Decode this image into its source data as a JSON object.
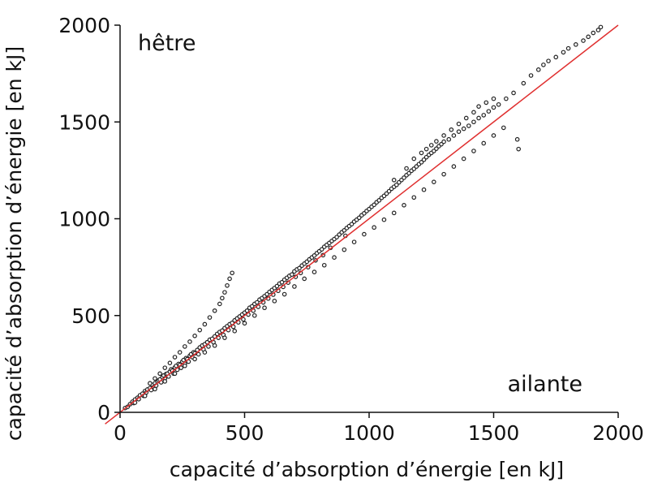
{
  "chart_data": {
    "type": "scatter",
    "xlabel": "capacité d’absorption d’énergie [en kJ]",
    "ylabel": "capacité d’absorption d’énergie [en kJ]",
    "xlim": [
      0,
      2000
    ],
    "ylim": [
      0,
      2000
    ],
    "xticks": [
      "0",
      "500",
      "1000",
      "1500",
      "2000"
    ],
    "yticks": [
      "0",
      "500",
      "1000",
      "1500",
      "2000"
    ],
    "annotations": {
      "top_left": "hêtre",
      "bottom_right": "ailante"
    },
    "grid": false,
    "marker_color": "#222222",
    "reference_line": {
      "type": "identity",
      "color": "#e03030",
      "from": [
        -60,
        -60
      ],
      "to": [
        2000,
        2000
      ]
    },
    "points": [
      [
        20,
        22
      ],
      [
        30,
        28
      ],
      [
        40,
        42
      ],
      [
        50,
        55
      ],
      [
        55,
        48
      ],
      [
        60,
        66
      ],
      [
        70,
        75
      ],
      [
        75,
        68
      ],
      [
        80,
        88
      ],
      [
        90,
        96
      ],
      [
        95,
        85
      ],
      [
        100,
        110
      ],
      [
        105,
        102
      ],
      [
        110,
        118
      ],
      [
        120,
        125
      ],
      [
        125,
        115
      ],
      [
        130,
        142
      ],
      [
        135,
        130
      ],
      [
        140,
        150
      ],
      [
        145,
        138
      ],
      [
        150,
        160
      ],
      [
        155,
        165
      ],
      [
        160,
        170
      ],
      [
        165,
        155
      ],
      [
        170,
        182
      ],
      [
        175,
        190
      ],
      [
        180,
        175
      ],
      [
        185,
        198
      ],
      [
        190,
        200
      ],
      [
        195,
        185
      ],
      [
        200,
        210
      ],
      [
        205,
        222
      ],
      [
        210,
        215
      ],
      [
        215,
        200
      ],
      [
        220,
        232
      ],
      [
        225,
        240
      ],
      [
        230,
        220
      ],
      [
        235,
        250
      ],
      [
        240,
        245
      ],
      [
        245,
        230
      ],
      [
        250,
        262
      ],
      [
        255,
        270
      ],
      [
        260,
        250
      ],
      [
        265,
        280
      ],
      [
        270,
        275
      ],
      [
        275,
        262
      ],
      [
        280,
        292
      ],
      [
        285,
        300
      ],
      [
        290,
        285
      ],
      [
        295,
        310
      ],
      [
        300,
        305
      ],
      [
        310,
        322
      ],
      [
        315,
        300
      ],
      [
        320,
        335
      ],
      [
        330,
        345
      ],
      [
        335,
        325
      ],
      [
        340,
        352
      ],
      [
        350,
        362
      ],
      [
        355,
        340
      ],
      [
        360,
        375
      ],
      [
        370,
        380
      ],
      [
        375,
        362
      ],
      [
        380,
        392
      ],
      [
        390,
        405
      ],
      [
        395,
        385
      ],
      [
        400,
        415
      ],
      [
        410,
        422
      ],
      [
        415,
        400
      ],
      [
        420,
        435
      ],
      [
        430,
        445
      ],
      [
        435,
        425
      ],
      [
        440,
        455
      ],
      [
        450,
        462
      ],
      [
        455,
        442
      ],
      [
        460,
        475
      ],
      [
        470,
        485
      ],
      [
        475,
        465
      ],
      [
        480,
        495
      ],
      [
        490,
        505
      ],
      [
        495,
        480
      ],
      [
        500,
        515
      ],
      [
        510,
        525
      ],
      [
        515,
        505
      ],
      [
        520,
        540
      ],
      [
        530,
        548
      ],
      [
        535,
        525
      ],
      [
        540,
        560
      ],
      [
        550,
        568
      ],
      [
        555,
        545
      ],
      [
        560,
        582
      ],
      [
        570,
        590
      ],
      [
        575,
        568
      ],
      [
        580,
        600
      ],
      [
        590,
        610
      ],
      [
        595,
        588
      ],
      [
        600,
        622
      ],
      [
        610,
        632
      ],
      [
        615,
        608
      ],
      [
        620,
        642
      ],
      [
        630,
        652
      ],
      [
        635,
        628
      ],
      [
        640,
        665
      ],
      [
        650,
        672
      ],
      [
        655,
        648
      ],
      [
        660,
        685
      ],
      [
        670,
        695
      ],
      [
        675,
        670
      ],
      [
        680,
        705
      ],
      [
        690,
        712
      ],
      [
        700,
        728
      ],
      [
        705,
        700
      ],
      [
        710,
        738
      ],
      [
        720,
        745
      ],
      [
        725,
        720
      ],
      [
        730,
        758
      ],
      [
        740,
        768
      ],
      [
        750,
        778
      ],
      [
        755,
        750
      ],
      [
        760,
        790
      ],
      [
        770,
        800
      ],
      [
        780,
        810
      ],
      [
        785,
        785
      ],
      [
        790,
        822
      ],
      [
        800,
        832
      ],
      [
        810,
        842
      ],
      [
        815,
        812
      ],
      [
        820,
        855
      ],
      [
        830,
        865
      ],
      [
        840,
        875
      ],
      [
        845,
        850
      ],
      [
        850,
        885
      ],
      [
        860,
        895
      ],
      [
        870,
        905
      ],
      [
        880,
        918
      ],
      [
        890,
        930
      ],
      [
        900,
        940
      ],
      [
        905,
        912
      ],
      [
        910,
        952
      ],
      [
        920,
        962
      ],
      [
        930,
        972
      ],
      [
        940,
        985
      ],
      [
        950,
        995
      ],
      [
        960,
        1005
      ],
      [
        970,
        1018
      ],
      [
        980,
        1028
      ],
      [
        990,
        1040
      ],
      [
        1000,
        1050
      ],
      [
        1010,
        1062
      ],
      [
        1020,
        1072
      ],
      [
        1030,
        1085
      ],
      [
        1040,
        1095
      ],
      [
        1050,
        1108
      ],
      [
        1060,
        1118
      ],
      [
        1070,
        1130
      ],
      [
        1080,
        1142
      ],
      [
        1090,
        1155
      ],
      [
        1100,
        1165
      ],
      [
        1110,
        1175
      ],
      [
        1120,
        1188
      ],
      [
        1130,
        1200
      ],
      [
        1140,
        1212
      ],
      [
        1150,
        1225
      ],
      [
        1160,
        1235
      ],
      [
        1170,
        1248
      ],
      [
        1180,
        1258
      ],
      [
        1190,
        1270
      ],
      [
        1200,
        1282
      ],
      [
        1210,
        1292
      ],
      [
        1220,
        1305
      ],
      [
        1230,
        1318
      ],
      [
        1240,
        1330
      ],
      [
        1250,
        1340
      ],
      [
        1260,
        1350
      ],
      [
        1270,
        1362
      ],
      [
        1280,
        1375
      ],
      [
        1290,
        1385
      ],
      [
        1300,
        1398
      ],
      [
        1320,
        1410
      ],
      [
        1340,
        1430
      ],
      [
        1360,
        1450
      ],
      [
        1380,
        1465
      ],
      [
        1400,
        1480
      ],
      [
        1420,
        1500
      ],
      [
        1440,
        1520
      ],
      [
        1460,
        1535
      ],
      [
        1480,
        1555
      ],
      [
        1500,
        1575
      ],
      [
        1520,
        1590
      ],
      [
        1550,
        1620
      ],
      [
        1580,
        1650
      ],
      [
        1600,
        1360
      ],
      [
        1595,
        1410
      ],
      [
        1620,
        1700
      ],
      [
        1650,
        1740
      ],
      [
        1680,
        1770
      ],
      [
        1700,
        1795
      ],
      [
        1720,
        1815
      ],
      [
        1750,
        1835
      ],
      [
        1780,
        1860
      ],
      [
        1800,
        1880
      ],
      [
        1830,
        1900
      ],
      [
        1860,
        1920
      ],
      [
        1880,
        1940
      ],
      [
        1900,
        1960
      ],
      [
        1920,
        1975
      ],
      [
        1930,
        1990
      ],
      [
        120,
        150
      ],
      [
        140,
        175
      ],
      [
        160,
        200
      ],
      [
        180,
        230
      ],
      [
        200,
        255
      ],
      [
        220,
        285
      ],
      [
        240,
        310
      ],
      [
        260,
        340
      ],
      [
        280,
        365
      ],
      [
        300,
        395
      ],
      [
        320,
        425
      ],
      [
        340,
        455
      ],
      [
        360,
        490
      ],
      [
        380,
        525
      ],
      [
        400,
        560
      ],
      [
        410,
        590
      ],
      [
        420,
        620
      ],
      [
        430,
        655
      ],
      [
        440,
        690
      ],
      [
        450,
        720
      ],
      [
        1100,
        1200
      ],
      [
        1150,
        1260
      ],
      [
        1180,
        1310
      ],
      [
        1210,
        1340
      ],
      [
        1230,
        1360
      ],
      [
        1250,
        1380
      ],
      [
        1270,
        1400
      ],
      [
        1300,
        1430
      ],
      [
        1330,
        1460
      ],
      [
        1360,
        1490
      ],
      [
        1390,
        1520
      ],
      [
        1420,
        1550
      ],
      [
        1440,
        1580
      ],
      [
        1470,
        1600
      ],
      [
        1500,
        1620
      ],
      [
        60,
        50
      ],
      [
        100,
        85
      ],
      [
        140,
        120
      ],
      [
        180,
        160
      ],
      [
        220,
        200
      ],
      [
        260,
        240
      ],
      [
        300,
        275
      ],
      [
        340,
        310
      ],
      [
        380,
        345
      ],
      [
        420,
        385
      ],
      [
        460,
        420
      ],
      [
        500,
        460
      ],
      [
        540,
        500
      ],
      [
        580,
        540
      ],
      [
        620,
        575
      ],
      [
        660,
        610
      ],
      [
        700,
        650
      ],
      [
        740,
        690
      ],
      [
        780,
        725
      ],
      [
        820,
        760
      ],
      [
        860,
        800
      ],
      [
        900,
        840
      ],
      [
        940,
        880
      ],
      [
        980,
        920
      ],
      [
        1020,
        955
      ],
      [
        1060,
        995
      ],
      [
        1100,
        1030
      ],
      [
        1140,
        1070
      ],
      [
        1180,
        1110
      ],
      [
        1220,
        1150
      ],
      [
        1260,
        1190
      ],
      [
        1300,
        1230
      ],
      [
        1340,
        1270
      ],
      [
        1380,
        1310
      ],
      [
        1420,
        1350
      ],
      [
        1460,
        1390
      ],
      [
        1500,
        1430
      ],
      [
        1540,
        1470
      ]
    ]
  }
}
